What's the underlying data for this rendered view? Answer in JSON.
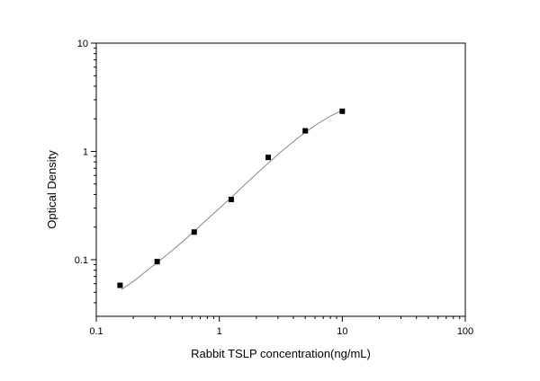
{
  "chart_data": {
    "type": "scatter",
    "xlabel": "Rabbit TSLP concentration(ng/mL)",
    "ylabel": "Optical Density",
    "xscale": "log",
    "yscale": "log",
    "xlim": [
      0.1,
      100
    ],
    "ylim": [
      0.03,
      10
    ],
    "xticks": [
      {
        "value": 0.1,
        "label": "0.1"
      },
      {
        "value": 1,
        "label": "1"
      },
      {
        "value": 10,
        "label": "10"
      },
      {
        "value": 100,
        "label": "100"
      }
    ],
    "yticks": [
      {
        "value": 0.1,
        "label": "0.1"
      },
      {
        "value": 1,
        "label": "1"
      },
      {
        "value": 10,
        "label": "10"
      }
    ],
    "grid": false,
    "legend": "none",
    "series": [
      {
        "marker": "square",
        "color": "#000000",
        "x": [
          0.156,
          0.3125,
          0.625,
          1.25,
          2.5,
          5,
          10
        ],
        "y": [
          0.058,
          0.096,
          0.18,
          0.36,
          0.88,
          1.55,
          2.35
        ]
      }
    ],
    "fit_curve": {
      "color": "#888888",
      "x": [
        0.16,
        0.2,
        0.25,
        0.3125,
        0.4,
        0.5,
        0.625,
        0.8,
        1.0,
        1.25,
        1.6,
        2.0,
        2.5,
        3.2,
        4.0,
        5.0,
        6.3,
        8.0,
        10.0
      ],
      "y": [
        0.053,
        0.063,
        0.077,
        0.094,
        0.118,
        0.146,
        0.183,
        0.237,
        0.298,
        0.375,
        0.49,
        0.62,
        0.78,
        1.0,
        1.23,
        1.5,
        1.8,
        2.12,
        2.4
      ]
    }
  }
}
